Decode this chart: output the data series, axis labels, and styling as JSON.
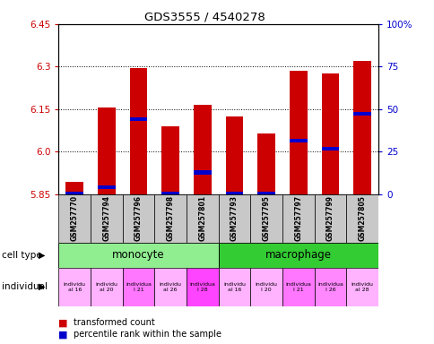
{
  "title": "GDS3555 / 4540278",
  "samples": [
    "GSM257770",
    "GSM257794",
    "GSM257796",
    "GSM257798",
    "GSM257801",
    "GSM257793",
    "GSM257795",
    "GSM257797",
    "GSM257799",
    "GSM257805"
  ],
  "red_values": [
    5.895,
    6.155,
    6.295,
    6.09,
    6.165,
    6.125,
    6.065,
    6.285,
    6.275,
    6.32
  ],
  "blue_values": [
    5.853,
    5.875,
    6.115,
    5.852,
    5.927,
    5.853,
    5.853,
    6.04,
    6.01,
    6.135
  ],
  "y_min": 5.85,
  "y_max": 6.45,
  "y_ticks_left": [
    5.85,
    6.0,
    6.15,
    6.3,
    6.45
  ],
  "y_ticks_right_vals": [
    0,
    25,
    50,
    75,
    100
  ],
  "y_ticks_right_labels": [
    "0",
    "25",
    "50",
    "75",
    "100%"
  ],
  "monocyte_color": "#90EE90",
  "macrophage_color": "#33CC33",
  "ind_colors": [
    "#FFB3FF",
    "#FFB3FF",
    "#FF77FF",
    "#FFB3FF",
    "#FF44FF",
    "#FFB3FF",
    "#FFB3FF",
    "#FF77FF",
    "#FF88FF",
    "#FFB3FF"
  ],
  "ind_labels": [
    "individu\nal 16",
    "individu\nal 20",
    "individua\nl 21",
    "individu\nal 26",
    "individua\nl 28",
    "individu\nal 16",
    "individu\nl 20",
    "individua\nl 21",
    "individua\nl 26",
    "individu\nal 28"
  ],
  "bar_color": "#CC0000",
  "dot_color": "#0000CC",
  "left_axis_color": "#CC0000",
  "right_axis_color": "#0000CC"
}
